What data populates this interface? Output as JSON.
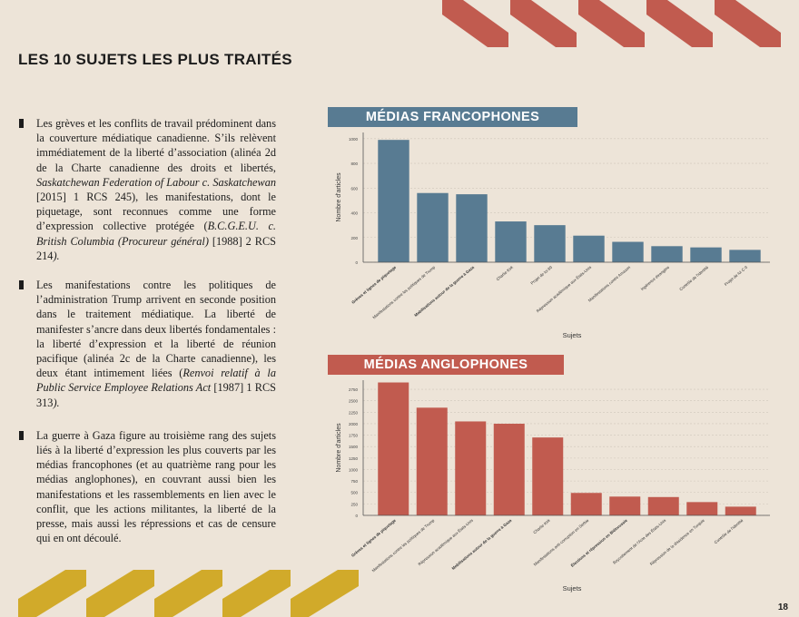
{
  "page": {
    "title": "LES 10 SUJETS LES PLUS TRAITÉS",
    "page_number": "18"
  },
  "colors": {
    "background": "#ede4d8",
    "francophone": "#587b92",
    "anglophone": "#c15b4f",
    "deco_top": "#c15b4f",
    "deco_bottom": "#d1aa2a"
  },
  "bullets": [
    {
      "segments": [
        {
          "text": "Les grèves et les conflits de travail prédominent dans la couverture médiatique canadienne. S’ils relèvent immédiatement de la liberté d’association (alinéa 2d de la Charte canadienne des droits et libertés, "
        },
        {
          "text": "Saskatchewan Federation of Labour c. Saskatchewan",
          "italic": true
        },
        {
          "text": " [2015] 1 RCS 245), les manifestations, dont le piquetage, sont reconnues comme une forme d’expression collective protégée ("
        },
        {
          "text": "B.C.G.E.U. c. British Columbia (Procureur général)",
          "italic": true
        },
        {
          "text": " [1988] 2 RCS 214"
        },
        {
          "text": ").",
          "italic": true
        }
      ]
    },
    {
      "segments": [
        {
          "text": "Les manifestations contre les politiques de l’administration Trump arrivent en seconde position dans le traitement médiatique. La liberté de manifester s’ancre dans deux libertés fondamentales : la liberté d’expression et la liberté de réunion pacifique (alinéa 2c de la Charte canadienne), les deux étant intimement liées ("
        },
        {
          "text": "Renvoi relatif à la Public Service Employee Relations Act",
          "italic": true
        },
        {
          "text": " [1987] 1 RCS 313"
        },
        {
          "text": ").",
          "italic": true
        }
      ]
    },
    {
      "segments": [
        {
          "text": "La guerre à Gaza figure au troisième rang des sujets liés à la liberté d’expression les plus couverts par les médias francophones (et au quatrième rang pour les médias anglophones), en couvrant aussi bien les manifestations et les rassemblements en lien avec le conflit, que les actions militantes, la liberté de la presse, mais aussi les répressions et cas de censure qui en ont découlé."
        }
      ]
    }
  ],
  "chart_data": [
    {
      "type": "bar",
      "title": "MÉDIAS FRANCOPHONES",
      "xlabel": "Sujets",
      "ylabel": "Nombre d'articles",
      "ylim": [
        0,
        1050
      ],
      "yticks": [
        0,
        200,
        400,
        600,
        800,
        1000
      ],
      "ytick_labels": [
        "0",
        "200",
        "400",
        "600",
        "800",
        "1000"
      ],
      "grid": true,
      "color": "#587b92",
      "categories": [
        "Grèves et lignes de piquetage",
        "Manifestations contre les politiques de Trump",
        "Mobilisations autour de la guerre à Gaza",
        "Charlie Kirk",
        "Projet de loi 89",
        "Répression académique aux États-Unis",
        "Manifestations contre Amazon",
        "Ingérence étrangère",
        "Contrôle de l'identité",
        "Projet de loi C-9"
      ],
      "bold_categories": [
        0,
        2
      ],
      "values": [
        990,
        560,
        550,
        330,
        300,
        215,
        165,
        130,
        120,
        100
      ]
    },
    {
      "type": "bar",
      "title": "MÉDIAS ANGLOPHONES",
      "xlabel": "Sujets",
      "ylabel": "Nombre d'articles",
      "ylim": [
        0,
        2950
      ],
      "yticks": [
        0,
        250,
        500,
        750,
        1000,
        1250,
        1500,
        1750,
        2000,
        2250,
        2500,
        2750
      ],
      "ytick_labels": [
        "0",
        "250",
        "500",
        "750",
        "1000",
        "1250",
        "1500",
        "1750",
        "2000",
        "2250",
        "2500",
        "2750"
      ],
      "grid": true,
      "color": "#c15b4f",
      "categories": [
        "Grèves et lignes de piquetage",
        "Manifestations contre les politiques de Trump",
        "Répression académique aux États-Unis",
        "Mobilisations autour de la guerre à Gaza",
        "Charlie Kirk",
        "Manifestations anti-corruption en Serbie",
        "Élections et répression en Biélorussie",
        "Boycottement de l'Acte des États-Unis",
        "Répression de la dissidence en Turquie",
        "Contrôle de l'identité"
      ],
      "bold_categories": [
        0,
        3,
        6
      ],
      "values": [
        2900,
        2350,
        2050,
        2000,
        1700,
        490,
        410,
        400,
        290,
        190
      ]
    }
  ]
}
